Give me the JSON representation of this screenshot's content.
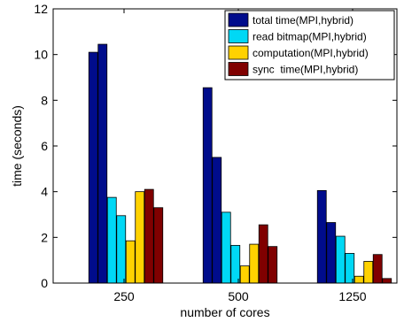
{
  "chart_data": {
    "type": "bar",
    "title": "",
    "xlabel": "number of cores",
    "ylabel": "time (seconds)",
    "ylim": [
      0,
      12
    ],
    "yticks": [
      0,
      2,
      4,
      6,
      8,
      10,
      12
    ],
    "categories": [
      "250",
      "500",
      "1250"
    ],
    "grid": false,
    "legend_position": "top-right",
    "series": [
      {
        "name": "total time(MPI,hybrid)",
        "color": "#000c8c",
        "values": [
          [
            10.1,
            10.45
          ],
          [
            8.55,
            5.5
          ],
          [
            4.05,
            2.65
          ]
        ]
      },
      {
        "name": "read bitmap(MPI,hybrid)",
        "color": "#00d8f5",
        "values": [
          [
            3.75,
            2.95
          ],
          [
            3.1,
            1.65
          ],
          [
            2.05,
            1.3
          ]
        ]
      },
      {
        "name": "computation(MPI,hybrid)",
        "color": "#ffd200",
        "values": [
          [
            1.85,
            4.0
          ],
          [
            0.75,
            1.7
          ],
          [
            0.3,
            0.95
          ]
        ]
      },
      {
        "name": "sync  time(MPI,hybrid)",
        "color": "#800000",
        "values": [
          [
            4.1,
            3.3
          ],
          [
            2.55,
            1.6
          ],
          [
            1.25,
            0.2
          ]
        ]
      }
    ]
  }
}
